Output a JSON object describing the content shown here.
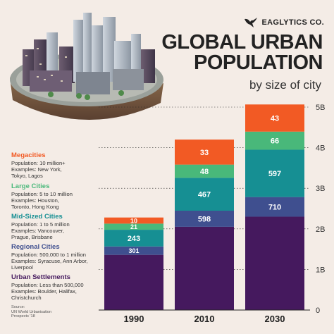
{
  "brand": {
    "name": "EAGLYTICS CO."
  },
  "header": {
    "title_line1": "GLOBAL URBAN",
    "title_line2": "POPULATION",
    "subtitle": "by size of city"
  },
  "legend": [
    {
      "key": "megacities",
      "name": "Megacities",
      "color": "#f25a24",
      "desc": "Population: 10 million+\nExamples: New York,\nTokyo, Lagos"
    },
    {
      "key": "large",
      "name": "Large Cities",
      "color": "#49b87a",
      "desc": "Population: 5 to 10 million\nExamples: Houston,\nToronto, Hong Kong"
    },
    {
      "key": "midsized",
      "name": "Mid-Sized Cities",
      "color": "#168f93",
      "desc": "Population: 1 to 5 million\nExamples: Vancouver,\nPrague, Brisbane"
    },
    {
      "key": "regional",
      "name": "Regional Cities",
      "color": "#3f4f8f",
      "desc": "Population: 500,000 to 1 million\nExamples: Syracuse, Ann Arbor,\nLiverpool"
    },
    {
      "key": "settlements",
      "name": "Urban Settlements",
      "color": "#45195e",
      "desc": "Population: Less than 500,000\nExamples: Boulder, Halifax,\nChristchurch"
    }
  ],
  "source": "Source:\nUN World Urbanisation\nProspects '18",
  "chart_data": {
    "type": "bar",
    "stacked": true,
    "categories": [
      "1990",
      "2010",
      "2030"
    ],
    "y_tick_labels": [
      "0",
      "1B",
      "2B",
      "3B",
      "4B",
      "5B"
    ],
    "ylim": [
      0,
      5000
    ],
    "unit": "millions",
    "series": [
      {
        "name": "Urban Settlements",
        "color": "#45195e",
        "values": [
          1360,
          2050,
          2300
        ],
        "labels": [
          "",
          "",
          ""
        ]
      },
      {
        "name": "Regional Cities",
        "color": "#3f4f8f",
        "values": [
          206,
          398,
          484
        ],
        "labels": [
          "301",
          "598",
          "710"
        ]
      },
      {
        "name": "Mid-Sized Cities",
        "color": "#168f93",
        "values": [
          412,
          810,
          1166
        ],
        "labels": [
          "243",
          "467",
          "597"
        ]
      },
      {
        "name": "Large Cities",
        "color": "#49b87a",
        "values": [
          151,
          325,
          446
        ],
        "labels": [
          "21",
          "48",
          "66"
        ]
      },
      {
        "name": "Megacities",
        "color": "#f25a24",
        "values": [
          151,
          617,
          669
        ],
        "labels": [
          "10",
          "33",
          "43"
        ]
      }
    ]
  }
}
